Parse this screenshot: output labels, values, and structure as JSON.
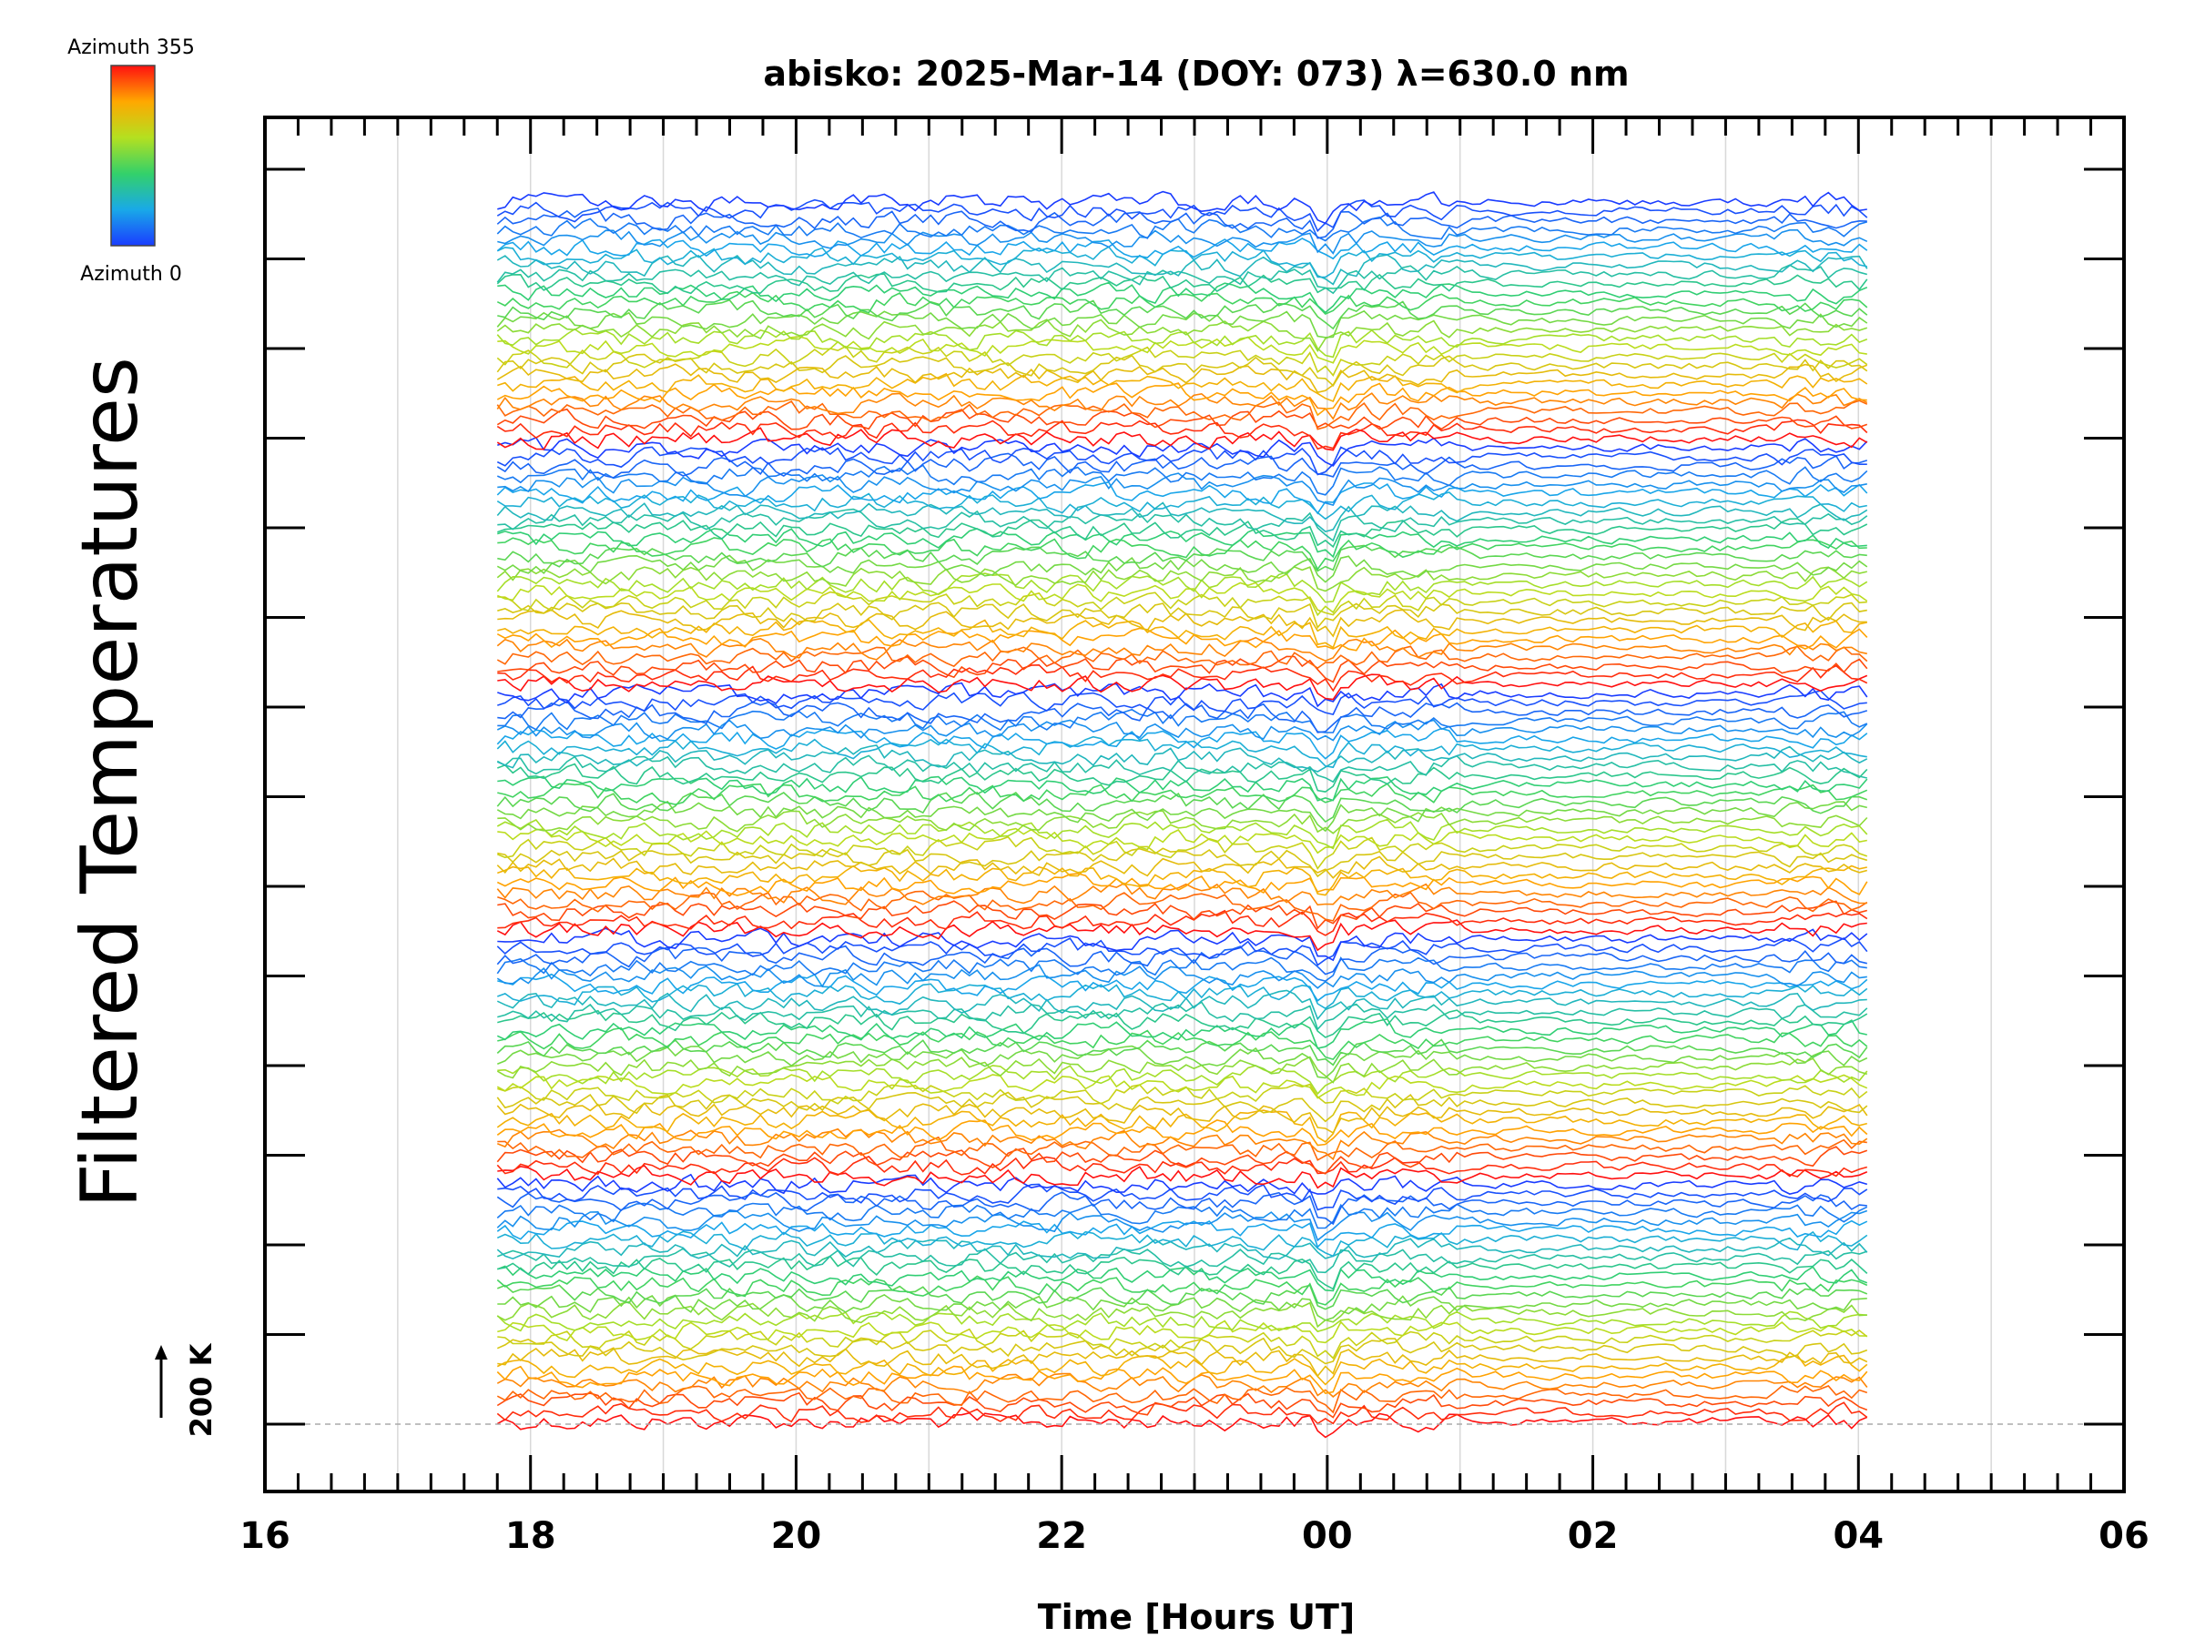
{
  "chart_data": {
    "type": "line",
    "title": "abisko: 2025-Mar-14 (DOY: 073) λ=630.0 nm",
    "xlabel": "Time [Hours UT]",
    "ylabel": "Filtered Temperatures",
    "x_ticks": [
      "16",
      "18",
      "20",
      "22",
      "00",
      "02",
      "04",
      "06"
    ],
    "xlim_hours_ut": [
      16,
      30
    ],
    "data_range_hours_ut": [
      17.75,
      28.1
    ],
    "y_scale_label": "200 K",
    "y_scale_kelvin": 200,
    "colorbar": {
      "label_top": "Azimuth 355",
      "label_bottom": "Azimuth 0",
      "azimuth_range_deg": [
        0,
        355
      ],
      "colormap": "rainbow (blue=0 to red=355)"
    },
    "n_traces": 135,
    "grid": "vertical lines, light gray, hourly",
    "colors": {
      "axis": "#000000",
      "grid": "#d8d8d8",
      "baseline": "#aaaaaa"
    }
  }
}
